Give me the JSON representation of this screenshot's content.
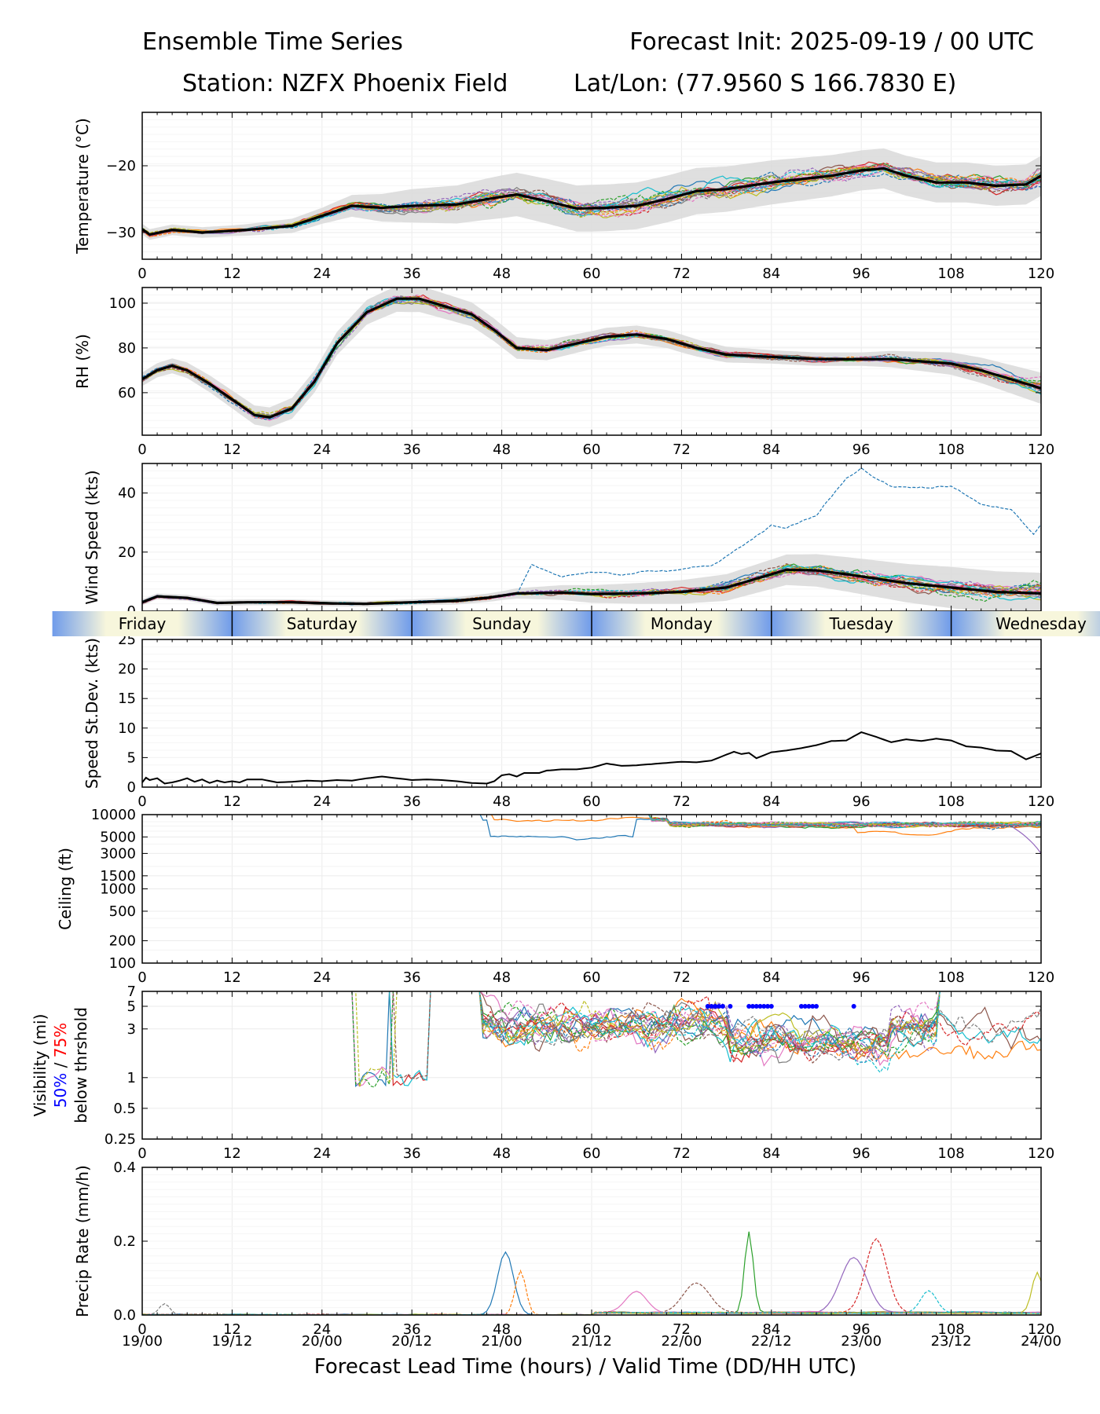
{
  "header": {
    "title_left": "Ensemble Time Series",
    "title_right": "Forecast Init: 2025-09-19 / 00 UTC",
    "station": "Station: NZFX Phoenix Field",
    "latlon": "Lat/Lon: (77.9560 S 166.7830 E)"
  },
  "xaxis": {
    "label": "Forecast Lead Time (hours) / Valid Time (DD/HH UTC)",
    "ticks": [
      "0",
      "12",
      "24",
      "36",
      "48",
      "60",
      "72",
      "84",
      "96",
      "108",
      "120"
    ],
    "valid_times": [
      "19/00",
      "19/12",
      "20/00",
      "20/12",
      "21/00",
      "21/12",
      "22/00",
      "22/12",
      "23/00",
      "23/12",
      "24/00"
    ],
    "range": [
      0,
      120
    ]
  },
  "day_bar": {
    "days": [
      "Friday",
      "Saturday",
      "Sunday",
      "Monday",
      "Tuesday",
      "Wednesday"
    ],
    "midday_colors": [
      "#f7f6dc",
      "#6f9bea"
    ]
  },
  "series_colors": [
    "#1f77b4",
    "#ff7f0e",
    "#2ca02c",
    "#d62728",
    "#9467bd",
    "#8c564b",
    "#e377c2",
    "#7f7f7f",
    "#bcbd22",
    "#17becf"
  ],
  "chart_data": [
    {
      "type": "line",
      "id": "temp",
      "ylabel": "Temperature (°C)",
      "ylim": [
        -34,
        -12
      ],
      "yticks": [
        "−20",
        "−30"
      ],
      "ytick_values": [
        -20,
        -30
      ],
      "grid": true,
      "mean_knots": [
        [
          0,
          -29.5
        ],
        [
          1,
          -30.3
        ],
        [
          4,
          -29.6
        ],
        [
          8,
          -30
        ],
        [
          14,
          -29.6
        ],
        [
          20,
          -29
        ],
        [
          24,
          -27.5
        ],
        [
          28,
          -26
        ],
        [
          32,
          -26.3
        ],
        [
          36,
          -26
        ],
        [
          42,
          -25.8
        ],
        [
          46,
          -25
        ],
        [
          50,
          -24.3
        ],
        [
          54,
          -25.3
        ],
        [
          58,
          -26.4
        ],
        [
          62,
          -26.3
        ],
        [
          66,
          -26
        ],
        [
          70,
          -25
        ],
        [
          74,
          -23.8
        ],
        [
          78,
          -23.5
        ],
        [
          84,
          -22.5
        ],
        [
          88,
          -22
        ],
        [
          92,
          -21.5
        ],
        [
          96,
          -20.7
        ],
        [
          99,
          -20.4
        ],
        [
          102,
          -21.5
        ],
        [
          106,
          -22.5
        ],
        [
          110,
          -22.5
        ],
        [
          114,
          -23
        ],
        [
          118,
          -22.8
        ],
        [
          120,
          -21.5
        ]
      ],
      "spread_envelope": [
        0.8,
        0.8,
        1.2,
        2.5,
        3.2,
        3.5,
        3.5,
        3.3,
        3.0,
        3.0,
        3.0
      ],
      "members": 20
    },
    {
      "type": "line",
      "id": "rh",
      "ylabel": "RH (%)",
      "ylim": [
        41,
        107
      ],
      "yticks": [
        "100",
        "80",
        "60"
      ],
      "ytick_values": [
        100,
        80,
        60
      ],
      "grid": true,
      "mean_knots": [
        [
          0,
          66
        ],
        [
          2,
          70
        ],
        [
          4,
          72
        ],
        [
          6,
          70
        ],
        [
          9,
          64
        ],
        [
          12,
          57
        ],
        [
          15,
          50
        ],
        [
          17,
          49
        ],
        [
          20,
          53
        ],
        [
          23,
          65
        ],
        [
          26,
          82
        ],
        [
          30,
          96
        ],
        [
          34,
          102
        ],
        [
          37,
          102
        ],
        [
          40,
          99
        ],
        [
          44,
          95
        ],
        [
          47,
          88
        ],
        [
          50,
          80
        ],
        [
          54,
          79
        ],
        [
          58,
          82
        ],
        [
          62,
          85
        ],
        [
          66,
          86
        ],
        [
          70,
          84
        ],
        [
          74,
          80
        ],
        [
          78,
          77
        ],
        [
          84,
          76
        ],
        [
          90,
          75
        ],
        [
          96,
          75
        ],
        [
          100,
          75
        ],
        [
          104,
          74
        ],
        [
          108,
          73
        ],
        [
          112,
          70
        ],
        [
          116,
          66
        ],
        [
          120,
          62
        ]
      ],
      "spread_envelope": [
        3,
        4,
        5,
        6,
        5,
        4,
        4,
        3,
        3,
        5,
        7
      ],
      "members": 20
    },
    {
      "type": "line",
      "id": "wind",
      "ylabel": "Wind Speed (kts)",
      "ylim": [
        0,
        50
      ],
      "yticks": [
        "40",
        "20",
        "0"
      ],
      "ytick_values": [
        40,
        20,
        0
      ],
      "grid": true,
      "mean_knots": [
        [
          0,
          3
        ],
        [
          2,
          5
        ],
        [
          6,
          4.5
        ],
        [
          10,
          2.8
        ],
        [
          14,
          3
        ],
        [
          20,
          3
        ],
        [
          26,
          2.6
        ],
        [
          30,
          2.5
        ],
        [
          36,
          3
        ],
        [
          42,
          3.5
        ],
        [
          46,
          4.5
        ],
        [
          50,
          6
        ],
        [
          56,
          6.3
        ],
        [
          60,
          5.8
        ],
        [
          66,
          6
        ],
        [
          72,
          6.5
        ],
        [
          78,
          8
        ],
        [
          82,
          11
        ],
        [
          86,
          14
        ],
        [
          90,
          13.8
        ],
        [
          94,
          12.5
        ],
        [
          98,
          11
        ],
        [
          102,
          9.5
        ],
        [
          108,
          8
        ],
        [
          114,
          6.5
        ],
        [
          120,
          6
        ]
      ],
      "spread_envelope": [
        1,
        1,
        1,
        1,
        1.5,
        3,
        4,
        5,
        6,
        7,
        7
      ],
      "outlier_knots": [
        [
          50,
          6
        ],
        [
          52,
          16
        ],
        [
          56,
          12
        ],
        [
          60,
          13
        ],
        [
          64,
          12
        ],
        [
          68,
          14
        ],
        [
          72,
          14
        ],
        [
          76,
          16
        ],
        [
          80,
          22
        ],
        [
          84,
          29
        ],
        [
          86,
          28
        ],
        [
          90,
          32
        ],
        [
          94,
          45
        ],
        [
          96,
          49
        ],
        [
          98,
          45
        ],
        [
          100,
          42
        ],
        [
          104,
          42
        ],
        [
          108,
          42
        ],
        [
          112,
          36
        ],
        [
          116,
          34
        ],
        [
          119,
          26
        ],
        [
          120,
          30
        ]
      ],
      "members": 20
    },
    {
      "type": "line",
      "id": "sd",
      "ylabel": "Speed St.Dev. (kts)",
      "ylim": [
        0,
        25
      ],
      "yticks": [
        "25",
        "20",
        "15",
        "10",
        "5",
        "0"
      ],
      "ytick_values": [
        25,
        20,
        15,
        10,
        5,
        0
      ],
      "grid": true,
      "values_knots": [
        [
          0,
          0.8
        ],
        [
          0.5,
          1.6
        ],
        [
          1,
          1.2
        ],
        [
          2,
          1.5
        ],
        [
          3,
          0.6
        ],
        [
          4,
          0.8
        ],
        [
          5,
          1.1
        ],
        [
          6,
          1.5
        ],
        [
          7,
          0.9
        ],
        [
          8,
          1.3
        ],
        [
          9,
          0.7
        ],
        [
          10,
          1.1
        ],
        [
          11,
          0.8
        ],
        [
          12,
          1.0
        ],
        [
          13,
          0.8
        ],
        [
          14,
          1.3
        ],
        [
          16,
          1.3
        ],
        [
          18,
          0.8
        ],
        [
          20,
          0.9
        ],
        [
          22,
          1.1
        ],
        [
          24,
          1.0
        ],
        [
          26,
          1.2
        ],
        [
          28,
          1.1
        ],
        [
          30,
          1.5
        ],
        [
          32,
          1.8
        ],
        [
          34,
          1.5
        ],
        [
          36,
          1.2
        ],
        [
          38,
          1.3
        ],
        [
          40,
          1.2
        ],
        [
          42,
          1.0
        ],
        [
          44,
          0.7
        ],
        [
          46,
          0.6
        ],
        [
          47,
          1.0
        ],
        [
          48,
          2.0
        ],
        [
          49,
          2.2
        ],
        [
          50,
          1.8
        ],
        [
          51,
          2.4
        ],
        [
          53,
          2.4
        ],
        [
          54,
          2.8
        ],
        [
          56,
          3.0
        ],
        [
          58,
          3.0
        ],
        [
          60,
          3.3
        ],
        [
          62,
          4.0
        ],
        [
          64,
          3.6
        ],
        [
          66,
          3.7
        ],
        [
          68,
          3.9
        ],
        [
          72,
          4.3
        ],
        [
          74,
          4.2
        ],
        [
          76,
          4.5
        ],
        [
          78,
          5.5
        ],
        [
          79,
          6.0
        ],
        [
          80,
          5.6
        ],
        [
          81,
          5.8
        ],
        [
          82,
          4.9
        ],
        [
          84,
          5.9
        ],
        [
          86,
          6.2
        ],
        [
          88,
          6.6
        ],
        [
          90,
          7.1
        ],
        [
          92,
          7.8
        ],
        [
          94,
          7.9
        ],
        [
          96,
          9.3
        ],
        [
          98,
          8.5
        ],
        [
          100,
          7.6
        ],
        [
          102,
          8.1
        ],
        [
          104,
          7.8
        ],
        [
          106,
          8.2
        ],
        [
          108,
          7.9
        ],
        [
          110,
          6.9
        ],
        [
          112,
          6.7
        ],
        [
          114,
          6.2
        ],
        [
          116,
          6.1
        ],
        [
          118,
          4.7
        ],
        [
          120,
          5.7
        ]
      ]
    },
    {
      "type": "line",
      "id": "ceil",
      "ylabel": "Ceiling (ft)",
      "scale": "log",
      "ylim": [
        100,
        10000
      ],
      "yticks": [
        "10000",
        "5000",
        "3000",
        "1500",
        "1000",
        "500",
        "200",
        "100"
      ],
      "ytick_values": [
        10000,
        5000,
        3000,
        1500,
        1000,
        500,
        200,
        100
      ],
      "grid": true,
      "members": 20
    },
    {
      "type": "line",
      "id": "vis",
      "ylabel": "Visibility (mi)",
      "ylabel_line2": [
        "50%",
        " / ",
        "75%"
      ],
      "ylabel_line3": "below thrshold",
      "label_colors": [
        "#0000ff",
        "#ff0000"
      ],
      "scale": "log",
      "ylim": [
        0.25,
        7
      ],
      "yticks": [
        "7",
        "5",
        "3",
        "1",
        "0.5",
        "0.25"
      ],
      "ytick_values": [
        7,
        5,
        3,
        1,
        0.5,
        0.25
      ],
      "grid": true,
      "threshold_50_hours": [
        75.5,
        76,
        76.5,
        77,
        77.5,
        78.5,
        81,
        81.5,
        82,
        82.5,
        83,
        83.5,
        84,
        88,
        88.5,
        89,
        89.5,
        90,
        95
      ],
      "threshold_value": 5,
      "members": 20
    },
    {
      "type": "line",
      "id": "precip",
      "ylabel": "Precip Rate (mm/h)",
      "ylim": [
        0,
        0.4
      ],
      "yticks": [
        "0.4",
        "0.2",
        "0.0"
      ],
      "ytick_values": [
        0.4,
        0.2,
        0.0
      ],
      "grid": true,
      "members": 20
    }
  ]
}
